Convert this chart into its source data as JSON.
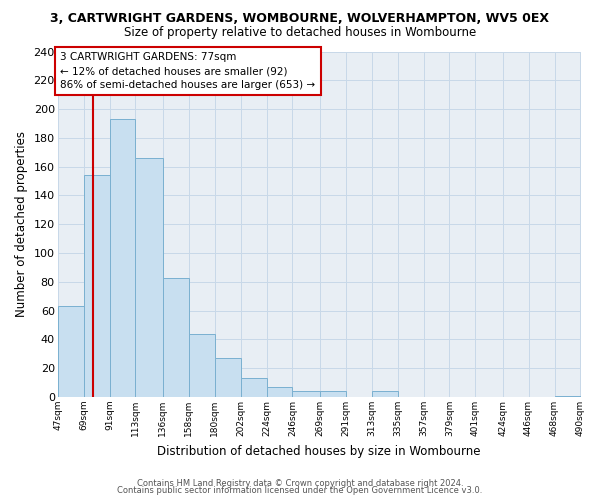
{
  "title": "3, CARTWRIGHT GARDENS, WOMBOURNE, WOLVERHAMPTON, WV5 0EX",
  "subtitle": "Size of property relative to detached houses in Wombourne",
  "xlabel": "Distribution of detached houses by size in Wombourne",
  "ylabel": "Number of detached properties",
  "bar_edges": [
    47,
    69,
    91,
    113,
    136,
    158,
    180,
    202,
    224,
    246,
    269,
    291,
    313,
    335,
    357,
    379,
    401,
    424,
    446,
    468,
    490
  ],
  "bar_heights": [
    63,
    154,
    193,
    166,
    83,
    44,
    27,
    13,
    7,
    4,
    4,
    0,
    4,
    0,
    0,
    0,
    0,
    0,
    0,
    1
  ],
  "bar_color": "#c8dff0",
  "bar_edge_color": "#7ab0d0",
  "property_line_x": 77,
  "property_line_color": "#cc0000",
  "annotation_line1": "3 CARTWRIGHT GARDENS: 77sqm",
  "annotation_line2": "← 12% of detached houses are smaller (92)",
  "annotation_line3": "86% of semi-detached houses are larger (653) →",
  "annotation_box_color": "#ffffff",
  "annotation_box_edge_color": "#cc0000",
  "ylim": [
    0,
    240
  ],
  "yticks": [
    0,
    20,
    40,
    60,
    80,
    100,
    120,
    140,
    160,
    180,
    200,
    220,
    240
  ],
  "tick_labels": [
    "47sqm",
    "69sqm",
    "91sqm",
    "113sqm",
    "136sqm",
    "158sqm",
    "180sqm",
    "202sqm",
    "224sqm",
    "246sqm",
    "269sqm",
    "291sqm",
    "313sqm",
    "335sqm",
    "357sqm",
    "379sqm",
    "401sqm",
    "424sqm",
    "446sqm",
    "468sqm",
    "490sqm"
  ],
  "footer1": "Contains HM Land Registry data © Crown copyright and database right 2024.",
  "footer2": "Contains public sector information licensed under the Open Government Licence v3.0.",
  "bg_color": "#ffffff",
  "plot_bg_color": "#e8eef4"
}
